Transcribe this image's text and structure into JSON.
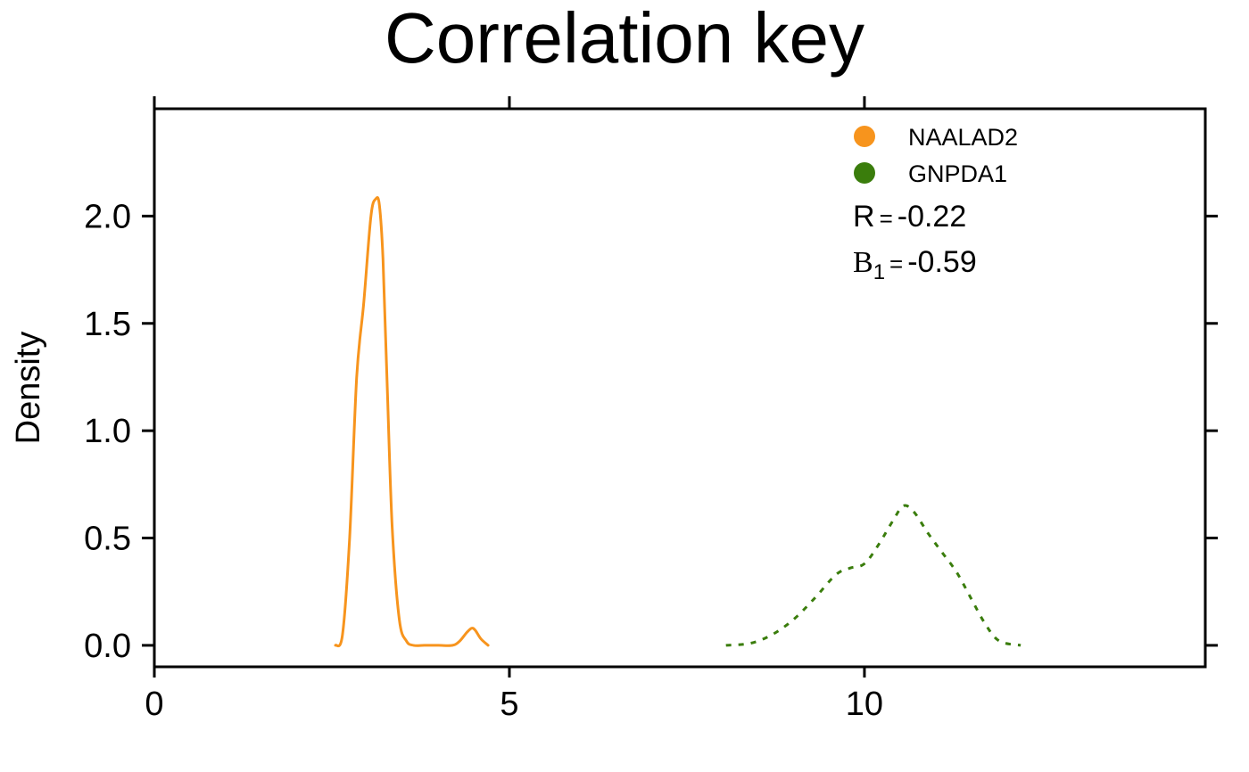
{
  "chart_data": {
    "type": "line",
    "title": "Correlation key",
    "xlabel": "",
    "ylabel": "Density",
    "xlim": [
      0,
      14.8
    ],
    "ylim": [
      -0.1,
      2.5
    ],
    "x_ticks": [
      0,
      5,
      10
    ],
    "x_tick_labels": [
      "0",
      "5",
      "10"
    ],
    "y_ticks": [
      0,
      0.5,
      1.0,
      1.5,
      2.0
    ],
    "y_tick_labels": [
      "0.0",
      "0.5",
      "1.0",
      "1.5",
      "2.0"
    ],
    "grid": false,
    "legend_position": "top-right",
    "series": [
      {
        "name": "NAALAD2",
        "color": "#f7941d",
        "line_style": "solid",
        "x": [
          2.55,
          2.65,
          2.75,
          2.85,
          2.95,
          3.05,
          3.12,
          3.17,
          3.22,
          3.28,
          3.35,
          3.45,
          3.55,
          3.65,
          3.8,
          4.0,
          4.2,
          4.3,
          4.4,
          4.47,
          4.52,
          4.6,
          4.7
        ],
        "y": [
          0.0,
          0.05,
          0.5,
          1.25,
          1.6,
          2.0,
          2.08,
          2.05,
          1.8,
          1.2,
          0.55,
          0.12,
          0.02,
          0.0,
          0.0,
          0.0,
          0.0,
          0.02,
          0.06,
          0.08,
          0.07,
          0.03,
          0.0
        ]
      },
      {
        "name": "GNPDA1",
        "color": "#3a7d0c",
        "line_style": "dotted",
        "x": [
          8.05,
          8.4,
          8.7,
          9.0,
          9.3,
          9.6,
          9.8,
          10.0,
          10.2,
          10.4,
          10.55,
          10.7,
          10.9,
          11.1,
          11.3,
          11.5,
          11.7,
          11.9,
          12.2
        ],
        "y": [
          0.0,
          0.01,
          0.05,
          0.12,
          0.22,
          0.33,
          0.36,
          0.38,
          0.47,
          0.58,
          0.65,
          0.62,
          0.52,
          0.43,
          0.34,
          0.22,
          0.1,
          0.02,
          0.0
        ]
      }
    ],
    "annotations": {
      "r_label": "R",
      "r_equals": "=",
      "r_value": "-0.22",
      "b_label": "B",
      "b_subscript": "1",
      "b_equals": "=",
      "b_value": "-0.59"
    }
  }
}
